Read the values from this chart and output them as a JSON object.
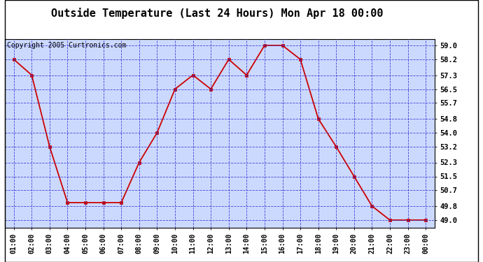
{
  "title": "Outside Temperature (Last 24 Hours) Mon Apr 18 00:00",
  "copyright": "Copyright 2005 Curtronics.com",
  "x_labels": [
    "01:00",
    "02:00",
    "03:00",
    "04:00",
    "05:00",
    "06:00",
    "07:00",
    "08:00",
    "09:00",
    "10:00",
    "11:00",
    "12:00",
    "13:00",
    "14:00",
    "15:00",
    "16:00",
    "17:00",
    "18:00",
    "19:00",
    "20:00",
    "21:00",
    "22:00",
    "23:00",
    "00:00"
  ],
  "y_values": [
    58.2,
    57.3,
    53.2,
    50.0,
    50.0,
    50.0,
    50.0,
    52.3,
    54.0,
    56.5,
    57.3,
    56.5,
    58.2,
    57.3,
    59.0,
    59.0,
    58.2,
    54.8,
    53.2,
    51.5,
    49.8,
    49.0,
    49.0,
    49.0
  ],
  "y_ticks": [
    49.0,
    49.8,
    50.7,
    51.5,
    52.3,
    53.2,
    54.0,
    54.8,
    55.7,
    56.5,
    57.3,
    58.2,
    59.0
  ],
  "ylim_min": 48.55,
  "ylim_max": 59.35,
  "line_color": "#cc0000",
  "marker_color": "#cc0000",
  "bg_color": "#ccd9ff",
  "fig_bg_color": "#ffffff",
  "grid_color": "#3333cc",
  "title_fontsize": 11,
  "copyright_fontsize": 7,
  "tick_fontsize": 7,
  "ytick_fontsize": 7.5
}
